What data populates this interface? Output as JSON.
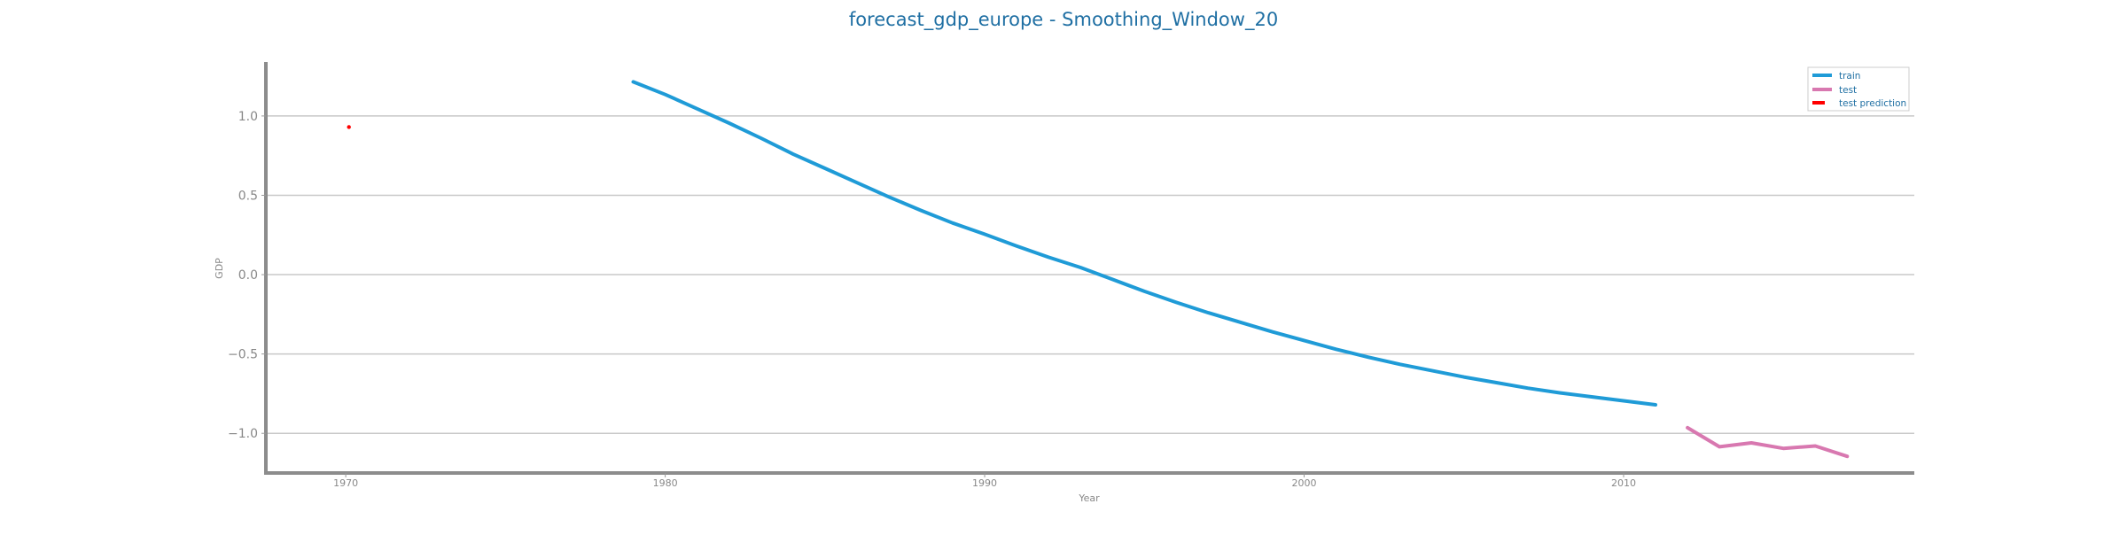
{
  "chart_data": {
    "type": "line",
    "title": "forecast_gdp_europe - Smoothing_Window_20",
    "xlabel": "Year",
    "ylabel": "GDP",
    "xlim": [
      1967.5,
      2019.1
    ],
    "ylim": [
      -1.25,
      1.34
    ],
    "x_ticks": [
      1970,
      1980,
      1990,
      2000,
      2010
    ],
    "y_ticks": [
      1.0,
      0.5,
      0.0,
      -0.5,
      -1.0
    ],
    "y_tick_labels": [
      "1.0",
      "0.5",
      "0.0",
      "−0.5",
      "−1.0"
    ],
    "grid": "horizontal",
    "legend_position": "top-right",
    "series": [
      {
        "name": "train",
        "color": "#1f9bd7",
        "style": "solid",
        "x": [
          1979,
          1980,
          1981,
          1982,
          1983,
          1984,
          1985,
          1986,
          1987,
          1988,
          1989,
          1990,
          1991,
          1992,
          1993,
          1994,
          1995,
          1996,
          1997,
          1998,
          1999,
          2000,
          2001,
          2002,
          2003,
          2004,
          2005,
          2006,
          2007,
          2008,
          2009,
          2010,
          2011
        ],
        "y": [
          1.215,
          1.135,
          1.045,
          0.955,
          0.86,
          0.76,
          0.67,
          0.58,
          0.49,
          0.405,
          0.325,
          0.255,
          0.18,
          0.11,
          0.045,
          -0.03,
          -0.105,
          -0.175,
          -0.24,
          -0.3,
          -0.36,
          -0.415,
          -0.47,
          -0.52,
          -0.565,
          -0.605,
          -0.645,
          -0.68,
          -0.715,
          -0.745,
          -0.77,
          -0.795,
          -0.82
        ]
      },
      {
        "name": "test",
        "color": "#d878b0",
        "style": "solid",
        "x": [
          2012,
          2013,
          2014,
          2015,
          2016,
          2017
        ],
        "y": [
          -0.965,
          -1.085,
          -1.06,
          -1.095,
          -1.08,
          -1.145
        ]
      },
      {
        "name": "test prediction",
        "color": "#ff0000",
        "style": "dashed",
        "x": [
          1970.1
        ],
        "y": [
          0.93
        ]
      }
    ]
  }
}
